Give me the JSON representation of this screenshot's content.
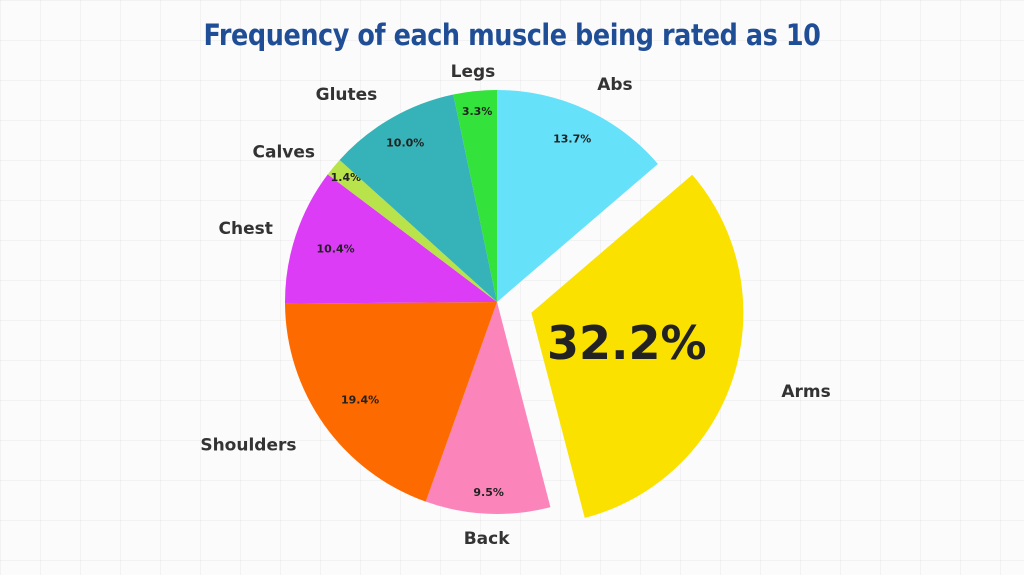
{
  "title": "Frequency of each muscle being rated as 10",
  "chart_data": {
    "type": "pie",
    "title": "Frequency of each muscle being rated as 10",
    "start_angle_deg": 0,
    "direction": "clockwise",
    "exploded": [
      "Arms"
    ],
    "slices": [
      {
        "label": "Abs",
        "value": 13.7,
        "pct_text": "13.7%",
        "color": "#66e1fa"
      },
      {
        "label": "Arms",
        "value": 32.2,
        "pct_text": "32.2%",
        "color": "#fae100"
      },
      {
        "label": "Back",
        "value": 9.5,
        "pct_text": "9.5%",
        "color": "#fb85ba"
      },
      {
        "label": "Shoulders",
        "value": 19.4,
        "pct_text": "19.4%",
        "color": "#fd6b00"
      },
      {
        "label": "Chest",
        "value": 10.4,
        "pct_text": "10.4%",
        "color": "#dc3cf5"
      },
      {
        "label": "Calves",
        "value": 1.4,
        "pct_text": "1.4%",
        "color": "#b8e34a"
      },
      {
        "label": "Glutes",
        "value": 10.0,
        "pct_text": "10.0%",
        "color": "#35b3b8"
      },
      {
        "label": "Legs",
        "value": 3.3,
        "pct_text": "3.3%",
        "color": "#33e23a"
      }
    ]
  }
}
